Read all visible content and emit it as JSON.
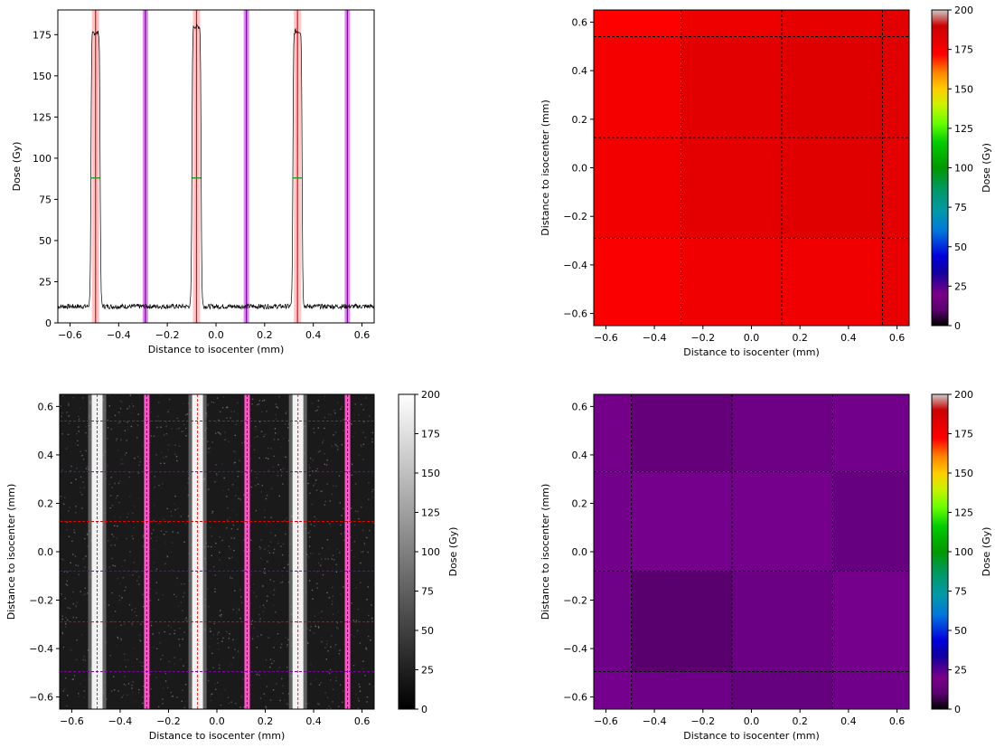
{
  "chart_data": [
    {
      "type": "line",
      "panel": "top-left",
      "xlabel": "Distance to isocenter (mm)",
      "ylabel": "Dose (Gy)",
      "xlim": [
        -0.65,
        0.65
      ],
      "ylim": [
        0,
        190
      ],
      "x_ticks": [
        -0.6,
        -0.4,
        -0.2,
        0.0,
        0.2,
        0.4,
        0.6
      ],
      "x_tick_labels": [
        "−0.6",
        "−0.4",
        "−0.2",
        "0.0",
        "0.2",
        "0.4",
        "0.6"
      ],
      "y_ticks": [
        0,
        25,
        50,
        75,
        100,
        125,
        150,
        175
      ],
      "y_tick_labels": [
        "0",
        "25",
        "50",
        "75",
        "100",
        "125",
        "150",
        "175"
      ],
      "background_dose": 10,
      "peak_centers": [
        -0.495,
        -0.08,
        0.335
      ],
      "peak_doses": [
        176,
        180,
        177
      ],
      "peak_fwhm": 0.038,
      "red_band_centers": [
        -0.495,
        -0.08,
        0.335
      ],
      "purple_band_centers": [
        -0.29,
        0.125,
        0.54
      ],
      "half_max_level": 88,
      "line_color": "#000000",
      "red_band_color": "#ff0000",
      "purple_band_color": "#b000d0",
      "half_max_color": "#2ca02c"
    },
    {
      "type": "heatmap",
      "panel": "top-right",
      "xlabel": "Distance to isocenter (mm)",
      "ylabel": "Distance to isocenter (mm)",
      "xlim": [
        -0.65,
        0.65
      ],
      "ylim": [
        -0.65,
        0.65
      ],
      "x_tick_labels": [
        "−0.6",
        "−0.4",
        "−0.2",
        "0.0",
        "0.2",
        "0.4",
        "0.6"
      ],
      "y_tick_labels": [
        "−0.6",
        "−0.4",
        "−0.2",
        "0.0",
        "0.2",
        "0.4",
        "0.6"
      ],
      "x_edges": [
        -0.65,
        -0.29,
        0.125,
        0.54,
        0.65
      ],
      "y_edges": [
        -0.65,
        -0.29,
        0.125,
        0.54,
        0.65
      ],
      "cells_top_to_bottom": [
        [
          "#ff0000",
          "#ee0000",
          "#e60000",
          "#e20000"
        ],
        [
          "#f40000",
          "#e20000",
          "#de0000",
          "#e00000"
        ],
        [
          "#f20000",
          "#e40000",
          "#e00000",
          "#e40000"
        ],
        [
          "#fa0000",
          "#f00000",
          "#f00000",
          "#e80000"
        ]
      ],
      "colorbar": {
        "label": "Dose (Gy)",
        "range": [
          0,
          200
        ],
        "colormap": "nipy_spectral",
        "tick_labels": [
          "0",
          "25",
          "50",
          "75",
          "100",
          "125",
          "150",
          "175",
          "200"
        ]
      }
    },
    {
      "type": "heatmap",
      "panel": "bottom-left",
      "xlabel": "Distance to isocenter (mm)",
      "ylabel": "Distance to isocenter (mm)",
      "xlim": [
        -0.65,
        0.65
      ],
      "ylim": [
        -0.65,
        0.65
      ],
      "x_tick_labels": [
        "−0.6",
        "−0.4",
        "−0.2",
        "0.0",
        "0.2",
        "0.4",
        "0.6"
      ],
      "y_tick_labels": [
        "−0.6",
        "−0.4",
        "−0.2",
        "0.0",
        "0.2",
        "0.4",
        "0.6"
      ],
      "bright_stripe_centers": [
        -0.495,
        -0.08,
        0.335
      ],
      "red_vertical_lines": [
        -0.495,
        -0.08,
        0.335
      ],
      "magenta_vertical_bands": [
        -0.29,
        0.125,
        0.54
      ],
      "red_horizontal_lines": [
        -0.29,
        0.125,
        0.54
      ],
      "purple_horizontal_lines": [
        -0.495,
        -0.08,
        0.33
      ],
      "colorbar": {
        "label": "Dose (Gy)",
        "range": [
          0,
          200
        ],
        "colormap": "gray",
        "tick_labels": [
          "0",
          "25",
          "50",
          "75",
          "100",
          "125",
          "150",
          "175",
          "200"
        ]
      }
    },
    {
      "type": "heatmap",
      "panel": "bottom-right",
      "xlabel": "Distance to isocenter (mm)",
      "ylabel": "Distance to isocenter (mm)",
      "xlim": [
        -0.65,
        0.65
      ],
      "ylim": [
        -0.65,
        0.65
      ],
      "x_tick_labels": [
        "−0.6",
        "−0.4",
        "−0.2",
        "0.0",
        "0.2",
        "0.4",
        "0.6"
      ],
      "y_tick_labels": [
        "−0.6",
        "−0.4",
        "−0.2",
        "0.0",
        "0.2",
        "0.4",
        "0.6"
      ],
      "x_edges": [
        -0.65,
        -0.495,
        -0.08,
        0.335,
        0.65
      ],
      "y_edges": [
        -0.65,
        -0.495,
        -0.08,
        0.33,
        0.65
      ],
      "cells_top_to_bottom": [
        [
          "#74008a",
          "#65007a",
          "#6d0084",
          "#73008a"
        ],
        [
          "#72008a",
          "#74008c",
          "#74008c",
          "#670080"
        ],
        [
          "#6f0088",
          "#59006e",
          "#6c0085",
          "#74008c"
        ],
        [
          "#76008e",
          "#6d0086",
          "#65007e",
          "#70008a"
        ]
      ],
      "colorbar": {
        "label": "Dose (Gy)",
        "range": [
          0,
          200
        ],
        "colormap": "nipy_spectral",
        "tick_labels": [
          "0",
          "25",
          "50",
          "75",
          "100",
          "125",
          "150",
          "175",
          "200"
        ]
      }
    }
  ]
}
